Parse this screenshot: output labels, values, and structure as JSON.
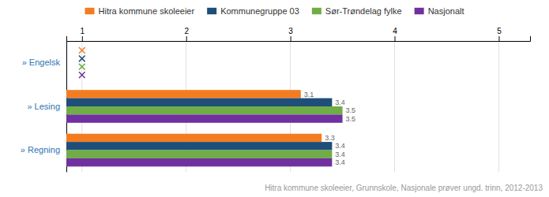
{
  "chart_data": {
    "type": "bar",
    "orientation": "horizontal",
    "subtitle": "Hitra kommune skoleeier, Grunnskole, Nasjonale prøver ungd. trinn, 2012-2013",
    "categories": [
      "» Engelsk",
      "» Lesing",
      "» Regning"
    ],
    "series": [
      {
        "name": "Hitra kommune skoleeier",
        "color": "#f47c20",
        "values": [
          null,
          3.1,
          3.3
        ]
      },
      {
        "name": "Kommunegruppe 03",
        "color": "#1f4e79",
        "values": [
          null,
          3.4,
          3.4
        ]
      },
      {
        "name": "Sør-Trøndelag fylke",
        "color": "#70ad47",
        "values": [
          null,
          3.5,
          3.4
        ]
      },
      {
        "name": "Nasjonalt",
        "color": "#7030a0",
        "values": [
          null,
          3.5,
          3.4
        ]
      }
    ],
    "xlim": [
      0.85,
      5.3
    ],
    "xticks": [
      1,
      2,
      3,
      4,
      5
    ],
    "grid": true,
    "legend": "top",
    "data_labels": true
  }
}
